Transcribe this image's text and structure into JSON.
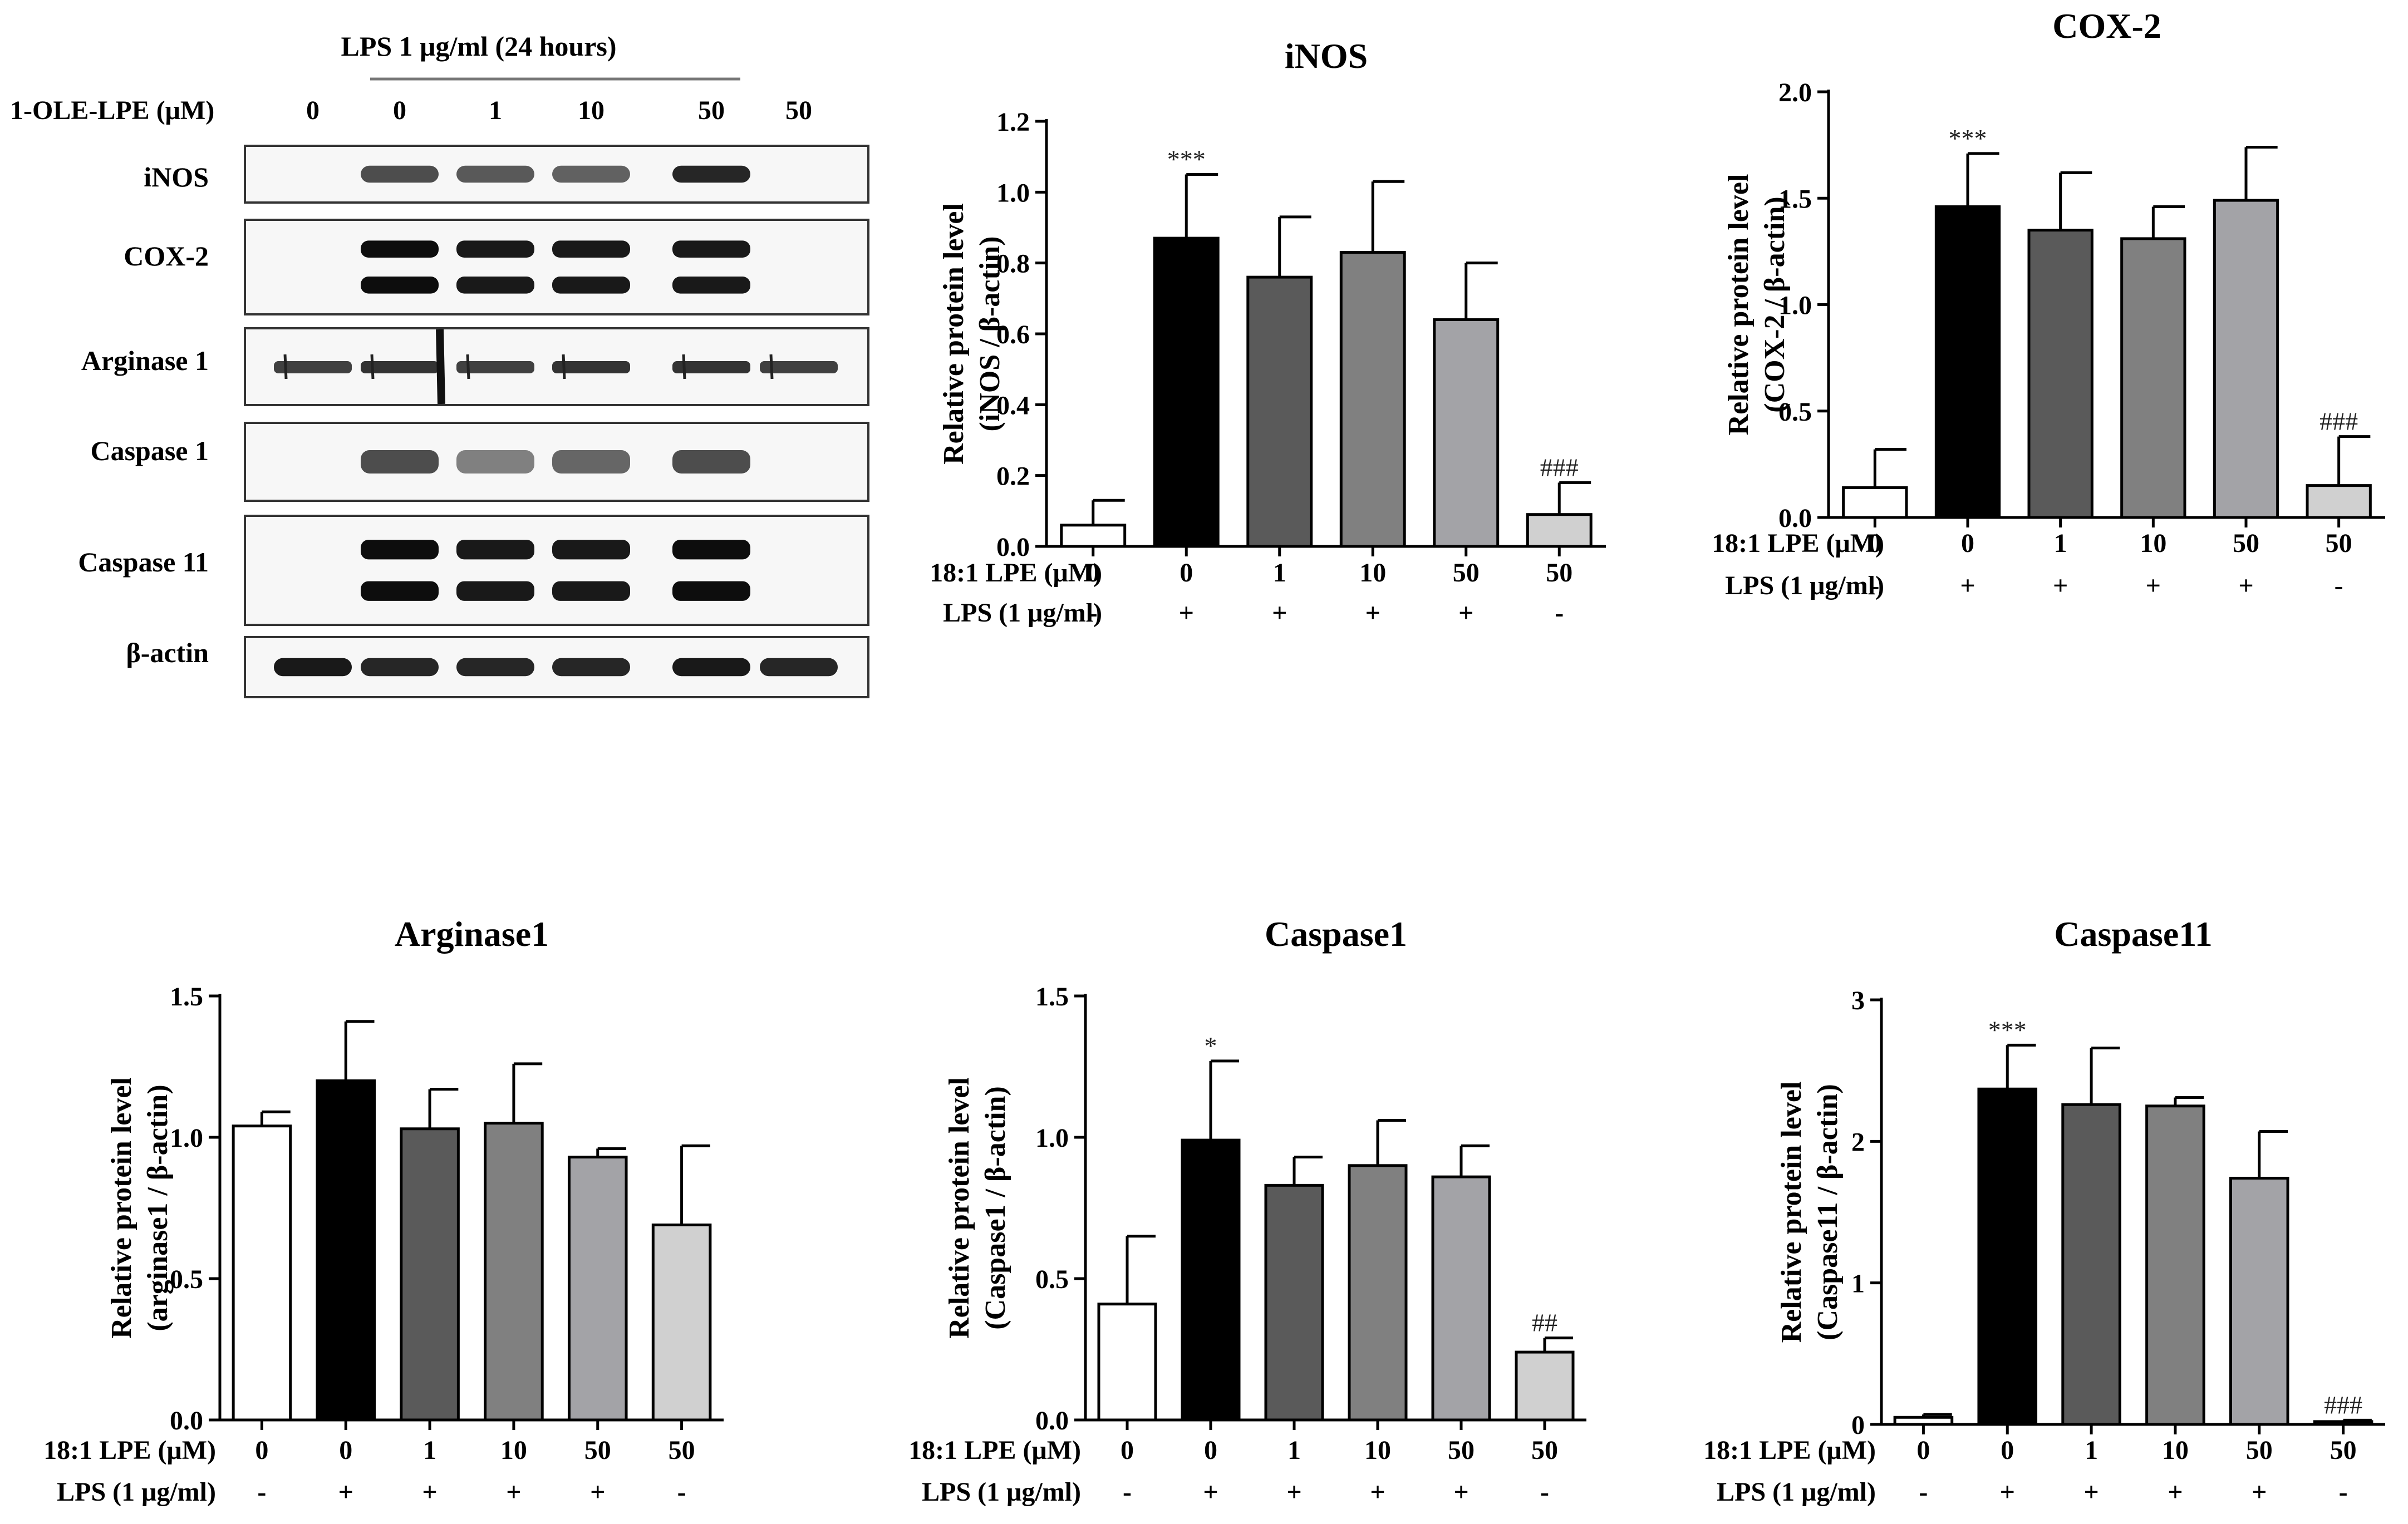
{
  "western_blot": {
    "lps_header": "LPS 1 μg/ml (24 hours)",
    "dose_label": "1-OLE-LPE (μM)",
    "doses": [
      "0",
      "0",
      "1",
      "10",
      "50",
      "50"
    ],
    "bands": [
      {
        "label": "iNOS",
        "intensity": [
          0,
          0.7,
          0.65,
          0.62,
          0.85,
          0
        ],
        "type": "single"
      },
      {
        "label": "COX-2",
        "intensity": [
          0,
          0.95,
          0.9,
          0.9,
          0.9,
          0
        ],
        "type": "double"
      },
      {
        "label": "Arginase 1",
        "intensity": [
          0.75,
          0.8,
          0.75,
          0.8,
          0.8,
          0.75
        ],
        "type": "noisy"
      },
      {
        "label": "Caspase 1",
        "intensity": [
          0,
          0.7,
          0.5,
          0.6,
          0.7,
          0
        ],
        "type": "single"
      },
      {
        "label": "Caspase 11",
        "intensity": [
          0,
          0.95,
          0.9,
          0.9,
          0.95,
          0
        ],
        "type": "double"
      },
      {
        "label": "β-actin",
        "intensity": [
          0.9,
          0.85,
          0.85,
          0.85,
          0.9,
          0.85
        ],
        "type": "single"
      }
    ]
  },
  "row_labels": {
    "lpe": "18:1 LPE (μM)",
    "lps": "LPS (1 μg/ml)",
    "lpe_values": [
      "0",
      "0",
      "1",
      "10",
      "50",
      "50"
    ],
    "lps_values": [
      "-",
      "+",
      "+",
      "+",
      "+",
      "-"
    ]
  },
  "bar_fills": [
    "#ffffff",
    "#000000",
    "#5a5a5a",
    "#808080",
    "#a3a3a7",
    "#d0d0d0"
  ],
  "chart_data": [
    {
      "type": "bar",
      "title": "iNOS",
      "ylabel_line1": "Relative protein level",
      "ylabel_line2": "(iNOS / β-actin)",
      "categories": [
        "0",
        "0",
        "1",
        "10",
        "50",
        "50"
      ],
      "values": [
        0.06,
        0.87,
        0.76,
        0.83,
        0.64,
        0.09
      ],
      "errors": [
        0.07,
        0.18,
        0.17,
        0.2,
        0.16,
        0.09
      ],
      "annotations": [
        "",
        "***",
        "",
        "",
        "",
        "###"
      ],
      "ylim": [
        0,
        1.2
      ],
      "yticks": [
        "0.0",
        "0.2",
        "0.4",
        "0.6",
        "0.8",
        "1.0",
        "1.2"
      ]
    },
    {
      "type": "bar",
      "title": "COX-2",
      "ylabel_line1": "Relative protein level",
      "ylabel_line2": "(COX-2 / β-actin)",
      "categories": [
        "0",
        "0",
        "1",
        "10",
        "50",
        "50"
      ],
      "values": [
        0.14,
        1.46,
        1.35,
        1.31,
        1.49,
        0.15
      ],
      "errors": [
        0.18,
        0.25,
        0.27,
        0.15,
        0.25,
        0.23
      ],
      "annotations": [
        "",
        "***",
        "",
        "",
        "",
        "###"
      ],
      "ylim": [
        0,
        2.0
      ],
      "yticks": [
        "0.0",
        "0.5",
        "1.0",
        "1.5",
        "2.0"
      ]
    },
    {
      "type": "bar",
      "title": "Arginase1",
      "ylabel_line1": "Relative protein level",
      "ylabel_line2": "(arginase1 / β-actin)",
      "categories": [
        "0",
        "0",
        "1",
        "10",
        "50",
        "50"
      ],
      "values": [
        1.04,
        1.2,
        1.03,
        1.05,
        0.93,
        0.69
      ],
      "errors": [
        0.05,
        0.21,
        0.14,
        0.21,
        0.03,
        0.28
      ],
      "annotations": [
        "",
        "",
        "",
        "",
        "",
        ""
      ],
      "ylim": [
        0,
        1.5
      ],
      "yticks": [
        "0.0",
        "0.5",
        "1.0",
        "1.5"
      ]
    },
    {
      "type": "bar",
      "title": "Caspase1",
      "ylabel_line1": "Relative protein level",
      "ylabel_line2": "(Caspase1 / β-actin)",
      "categories": [
        "0",
        "0",
        "1",
        "10",
        "50",
        "50"
      ],
      "values": [
        0.41,
        0.99,
        0.83,
        0.9,
        0.86,
        0.24
      ],
      "errors": [
        0.24,
        0.28,
        0.1,
        0.16,
        0.11,
        0.05
      ],
      "annotations": [
        "",
        "*",
        "",
        "",
        "",
        "##"
      ],
      "ylim": [
        0,
        1.5
      ],
      "yticks": [
        "0.0",
        "0.5",
        "1.0",
        "1.5"
      ]
    },
    {
      "type": "bar",
      "title": "Caspase11",
      "ylabel_line1": "Relative protein level",
      "ylabel_line2": "(Caspase11 / β-actin)",
      "categories": [
        "0",
        "0",
        "1",
        "10",
        "50",
        "50"
      ],
      "values": [
        0.05,
        2.37,
        2.26,
        2.25,
        1.74,
        0.02
      ],
      "errors": [
        0.02,
        0.31,
        0.4,
        0.06,
        0.33,
        0.01
      ],
      "annotations": [
        "",
        "***",
        "",
        "",
        "",
        "###"
      ],
      "ylim": [
        0,
        3
      ],
      "yticks": [
        "0",
        "1",
        "2",
        "3"
      ]
    }
  ]
}
